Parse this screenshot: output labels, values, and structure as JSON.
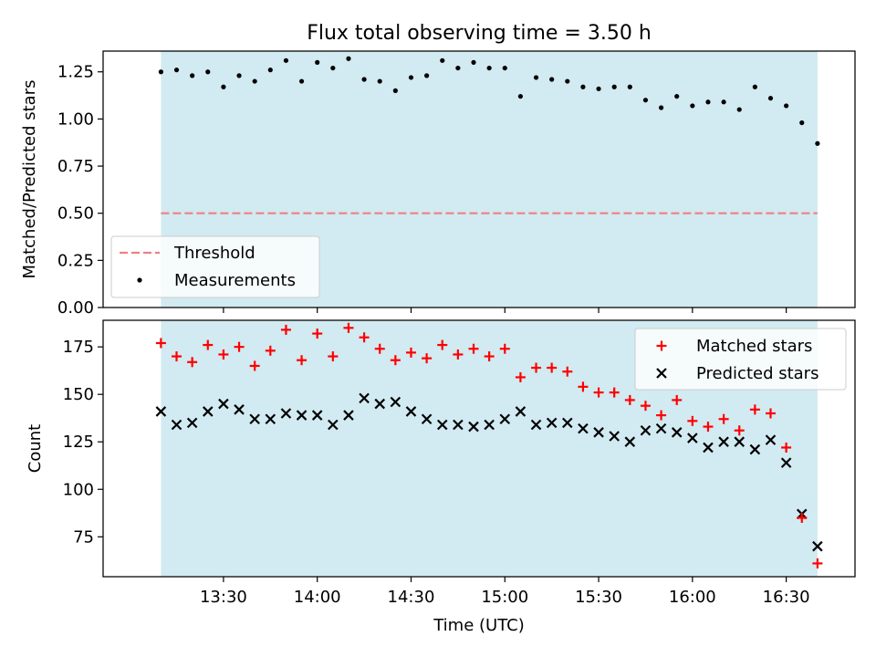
{
  "chart_data": [
    {
      "type": "scatter",
      "title": "Flux total observing time = 3.50 h",
      "xlabel": "",
      "ylabel": "Matched/Predicted stars",
      "ylim": [
        0,
        1.36
      ],
      "yticks": [
        "0.00",
        "0.25",
        "0.50",
        "0.75",
        "1.00",
        "1.25"
      ],
      "shaded_span": [
        "13:10",
        "16:40"
      ],
      "shade_color": "#add8e6",
      "legend_position": "lower-left",
      "threshold": {
        "name": "Threshold",
        "value": 0.5,
        "color": "#f08080"
      },
      "series": [
        {
          "name": "Measurements",
          "color": "#000000",
          "marker": "dot",
          "x": [
            "13:10",
            "13:15",
            "13:20",
            "13:25",
            "13:30",
            "13:35",
            "13:40",
            "13:45",
            "13:50",
            "13:55",
            "14:00",
            "14:05",
            "14:10",
            "14:15",
            "14:20",
            "14:25",
            "14:30",
            "14:35",
            "14:40",
            "14:45",
            "14:50",
            "14:55",
            "15:00",
            "15:05",
            "15:10",
            "15:15",
            "15:20",
            "15:25",
            "15:30",
            "15:35",
            "15:40",
            "15:45",
            "15:50",
            "15:55",
            "16:00",
            "16:05",
            "16:10",
            "16:15",
            "16:20",
            "16:25",
            "16:30",
            "16:35",
            "16:40"
          ],
          "values": [
            1.25,
            1.26,
            1.23,
            1.25,
            1.17,
            1.23,
            1.2,
            1.26,
            1.31,
            1.2,
            1.3,
            1.27,
            1.32,
            1.21,
            1.2,
            1.15,
            1.22,
            1.23,
            1.31,
            1.27,
            1.3,
            1.27,
            1.27,
            1.12,
            1.22,
            1.21,
            1.2,
            1.17,
            1.16,
            1.17,
            1.17,
            1.1,
            1.06,
            1.12,
            1.07,
            1.09,
            1.09,
            1.05,
            1.17,
            1.11,
            1.07,
            0.98,
            0.87
          ]
        }
      ]
    },
    {
      "type": "scatter",
      "title": "",
      "xlabel": "Time (UTC)",
      "ylabel": "Count",
      "ylim": [
        54,
        189
      ],
      "yticks": [
        "75",
        "100",
        "125",
        "150",
        "175"
      ],
      "xticks": [
        "13:30",
        "14:00",
        "14:30",
        "15:00",
        "15:30",
        "16:00",
        "16:30"
      ],
      "shaded_span": [
        "13:10",
        "16:40"
      ],
      "shade_color": "#add8e6",
      "legend_position": "top-right",
      "series": [
        {
          "name": "Matched stars",
          "color": "#ff0000",
          "marker": "plus",
          "x": [
            "13:10",
            "13:15",
            "13:20",
            "13:25",
            "13:30",
            "13:35",
            "13:40",
            "13:45",
            "13:50",
            "13:55",
            "14:00",
            "14:05",
            "14:10",
            "14:15",
            "14:20",
            "14:25",
            "14:30",
            "14:35",
            "14:40",
            "14:45",
            "14:50",
            "14:55",
            "15:00",
            "15:05",
            "15:10",
            "15:15",
            "15:20",
            "15:25",
            "15:30",
            "15:35",
            "15:40",
            "15:45",
            "15:50",
            "15:55",
            "16:00",
            "16:05",
            "16:10",
            "16:15",
            "16:20",
            "16:25",
            "16:30",
            "16:35",
            "16:40"
          ],
          "values": [
            177,
            170,
            167,
            176,
            171,
            175,
            165,
            173,
            184,
            168,
            182,
            170,
            185,
            180,
            174,
            168,
            172,
            169,
            176,
            171,
            174,
            170,
            174,
            159,
            164,
            164,
            162,
            154,
            151,
            151,
            147,
            144,
            139,
            147,
            136,
            133,
            137,
            131,
            142,
            140,
            122,
            85,
            61
          ]
        },
        {
          "name": "Predicted stars",
          "color": "#000000",
          "marker": "x",
          "x": [
            "13:10",
            "13:15",
            "13:20",
            "13:25",
            "13:30",
            "13:35",
            "13:40",
            "13:45",
            "13:50",
            "13:55",
            "14:00",
            "14:05",
            "14:10",
            "14:15",
            "14:20",
            "14:25",
            "14:30",
            "14:35",
            "14:40",
            "14:45",
            "14:50",
            "14:55",
            "15:00",
            "15:05",
            "15:10",
            "15:15",
            "15:20",
            "15:25",
            "15:30",
            "15:35",
            "15:40",
            "15:45",
            "15:50",
            "15:55",
            "16:00",
            "16:05",
            "16:10",
            "16:15",
            "16:20",
            "16:25",
            "16:30",
            "16:35",
            "16:40"
          ],
          "values": [
            141,
            134,
            135,
            141,
            145,
            142,
            137,
            137,
            140,
            139,
            139,
            134,
            139,
            148,
            145,
            146,
            141,
            137,
            134,
            134,
            133,
            134,
            137,
            141,
            134,
            135,
            135,
            132,
            130,
            128,
            125,
            131,
            132,
            130,
            127,
            122,
            125,
            125,
            121,
            126,
            114,
            87,
            70
          ]
        }
      ]
    }
  ]
}
